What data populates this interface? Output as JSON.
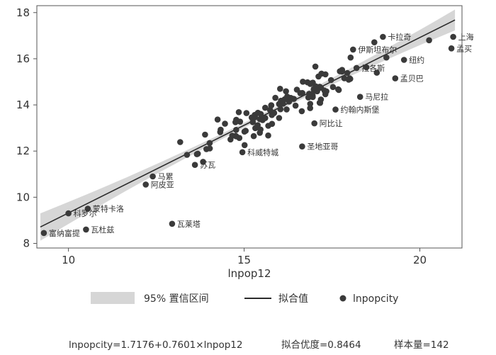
{
  "chart_data": {
    "type": "scatter",
    "xlabel": "lnpop12",
    "ylabel": "",
    "xlim": [
      9.1,
      21.2
    ],
    "ylim": [
      7.8,
      18.3
    ],
    "xticks": [
      "10",
      "15",
      "20"
    ],
    "yticks": [
      "8",
      "10",
      "12",
      "14",
      "16",
      "18"
    ],
    "grid": false,
    "fit": {
      "intercept": 1.7176,
      "slope": 0.7601,
      "x_range": [
        9.2,
        21.0
      ]
    },
    "legend": {
      "placement": "bottom",
      "items": [
        {
          "label": "95% 置信区间",
          "kind": "band"
        },
        {
          "label": "拟合值",
          "kind": "line"
        },
        {
          "label": "lnpopcity",
          "kind": "marker"
        }
      ]
    },
    "note": {
      "equation": "lnpopcity=1.7176+0.7601×lnpop12",
      "fit": "拟合优度=0.8464",
      "n": "样本量=142"
    },
    "labeled_points": [
      {
        "name": "富纳富提",
        "x": 9.3,
        "y": 8.45
      },
      {
        "name": "瓦杜兹",
        "x": 10.5,
        "y": 8.6
      },
      {
        "name": "瓦莱塔",
        "x": 12.95,
        "y": 8.85
      },
      {
        "name": "蒙特卡洛",
        "x": 10.55,
        "y": 9.5
      },
      {
        "name": "科罗尔",
        "x": 10.0,
        "y": 9.3
      },
      {
        "name": "阿皮亚",
        "x": 12.2,
        "y": 10.55
      },
      {
        "name": "马累",
        "x": 12.4,
        "y": 10.9
      },
      {
        "name": "苏瓦",
        "x": 13.6,
        "y": 11.4
      },
      {
        "name": "科威特城",
        "x": 14.95,
        "y": 11.95
      },
      {
        "name": "圣地亚哥",
        "x": 16.65,
        "y": 12.2
      },
      {
        "name": "阿比让",
        "x": 17.0,
        "y": 13.2
      },
      {
        "name": "约翰内斯堡",
        "x": 17.6,
        "y": 13.8
      },
      {
        "name": "马尼拉",
        "x": 18.3,
        "y": 14.35
      },
      {
        "name": "孟买",
        "x": 20.9,
        "y": 16.45
      },
      {
        "name": "上海",
        "x": 20.95,
        "y": 16.95
      },
      {
        "name": "卡拉奇",
        "x": 18.95,
        "y": 16.95
      },
      {
        "name": "伊斯坦布尔",
        "x": 18.1,
        "y": 16.4
      },
      {
        "name": "纽约",
        "x": 19.55,
        "y": 15.95
      },
      {
        "name": "拉各斯",
        "x": 18.2,
        "y": 15.6
      },
      {
        "name": "孟贝巴",
        "x": 19.3,
        "y": 15.15
      }
    ]
  }
}
